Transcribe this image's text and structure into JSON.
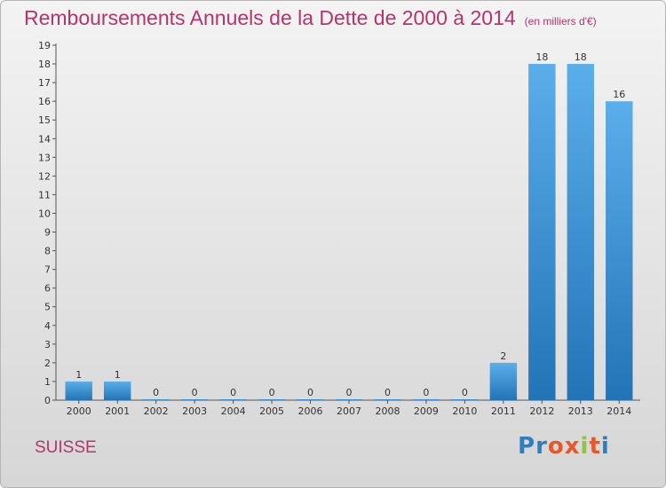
{
  "chart_data": {
    "type": "bar",
    "title": "Remboursements Annuels de la Dette de 2000 à 2014",
    "subtitle": "(en milliers d'€)",
    "xlabel": "",
    "ylabel": "",
    "categories": [
      "2000",
      "2001",
      "2002",
      "2003",
      "2004",
      "2005",
      "2006",
      "2007",
      "2008",
      "2009",
      "2010",
      "2011",
      "2012",
      "2013",
      "2014"
    ],
    "values": [
      1,
      1,
      0,
      0,
      0,
      0,
      0,
      0,
      0,
      0,
      0,
      2,
      18,
      18,
      16
    ],
    "ylim": [
      0,
      19
    ],
    "yticks": [
      0,
      1,
      2,
      3,
      4,
      5,
      6,
      7,
      8,
      9,
      10,
      11,
      12,
      13,
      14,
      15,
      16,
      17,
      18,
      19
    ],
    "grid": false,
    "bar_color": "#3a93d8"
  },
  "footer": {
    "place": "SUISSE",
    "logo": [
      "P",
      "r",
      "o",
      "x",
      "i",
      "t",
      "i"
    ],
    "logo_colors": [
      "#2d7fc1",
      "#2d7fc1",
      "#e8572a",
      "#e8572a",
      "#8cc63f",
      "#e8572a",
      "#2d7fc1"
    ]
  }
}
